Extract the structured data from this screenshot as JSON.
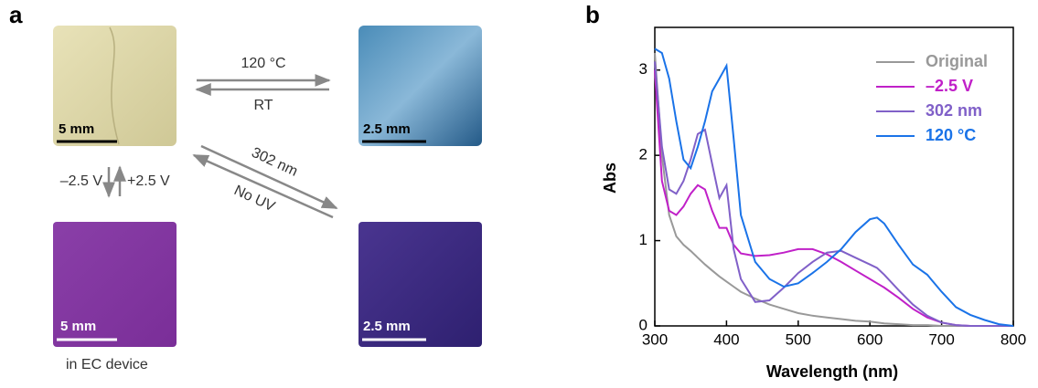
{
  "panel_a": {
    "label": "a",
    "scale_bars": [
      "5 mm",
      "2.5 mm",
      "5 mm",
      "2.5 mm"
    ],
    "arrows": {
      "heat": "120 °C",
      "cool": "RT",
      "uv": "302 nm",
      "no_uv": "No UV",
      "reduce": "–2.5 V",
      "oxidize": "+2.5 V"
    },
    "caption": "in EC device"
  },
  "chart_data": {
    "type": "line",
    "panel_label": "b",
    "x_label": "Wavelength (nm)",
    "y_label": "Abs",
    "x": [
      300,
      310,
      320,
      330,
      340,
      350,
      360,
      370,
      380,
      390,
      400,
      410,
      420,
      440,
      460,
      480,
      500,
      520,
      540,
      560,
      580,
      600,
      610,
      620,
      640,
      660,
      680,
      700,
      720,
      740,
      760,
      780,
      800
    ],
    "series": [
      {
        "name": "Original",
        "color": "#999999",
        "values": [
          3.2,
          2.0,
          1.3,
          1.05,
          0.95,
          0.88,
          0.8,
          0.72,
          0.65,
          0.58,
          0.52,
          0.46,
          0.4,
          0.32,
          0.25,
          0.2,
          0.15,
          0.12,
          0.1,
          0.08,
          0.06,
          0.05,
          0.04,
          0.03,
          0.02,
          0.01,
          0.01,
          0,
          0,
          0,
          0,
          0,
          0
        ]
      },
      {
        "name": "–2.5 V",
        "color": "#c020c8",
        "values": [
          3.0,
          1.7,
          1.35,
          1.3,
          1.4,
          1.55,
          1.65,
          1.6,
          1.35,
          1.15,
          1.15,
          0.95,
          0.85,
          0.82,
          0.83,
          0.86,
          0.9,
          0.9,
          0.84,
          0.75,
          0.65,
          0.55,
          0.5,
          0.45,
          0.33,
          0.2,
          0.1,
          0.04,
          0.01,
          0,
          0,
          0,
          0
        ]
      },
      {
        "name": "302 nm",
        "color": "#8060c8",
        "values": [
          3.1,
          2.1,
          1.6,
          1.55,
          1.7,
          1.95,
          2.25,
          2.3,
          1.9,
          1.5,
          1.65,
          0.9,
          0.55,
          0.28,
          0.3,
          0.45,
          0.62,
          0.75,
          0.86,
          0.88,
          0.8,
          0.72,
          0.68,
          0.6,
          0.42,
          0.25,
          0.12,
          0.04,
          0.01,
          0,
          0,
          0,
          0
        ]
      },
      {
        "name": "120 °C",
        "color": "#1a73e8",
        "values": [
          3.25,
          3.2,
          2.9,
          2.4,
          1.95,
          1.85,
          2.1,
          2.4,
          2.75,
          2.9,
          3.05,
          2.2,
          1.3,
          0.75,
          0.55,
          0.46,
          0.5,
          0.62,
          0.75,
          0.9,
          1.1,
          1.25,
          1.27,
          1.2,
          0.95,
          0.72,
          0.6,
          0.4,
          0.22,
          0.13,
          0.07,
          0.02,
          0
        ]
      }
    ],
    "xlim": [
      300,
      800
    ],
    "xticks": [
      300,
      400,
      500,
      600,
      700,
      800
    ],
    "ylim": [
      0,
      3.5
    ],
    "yticks": [
      0,
      1,
      2,
      3
    ],
    "legend": "upper right"
  }
}
